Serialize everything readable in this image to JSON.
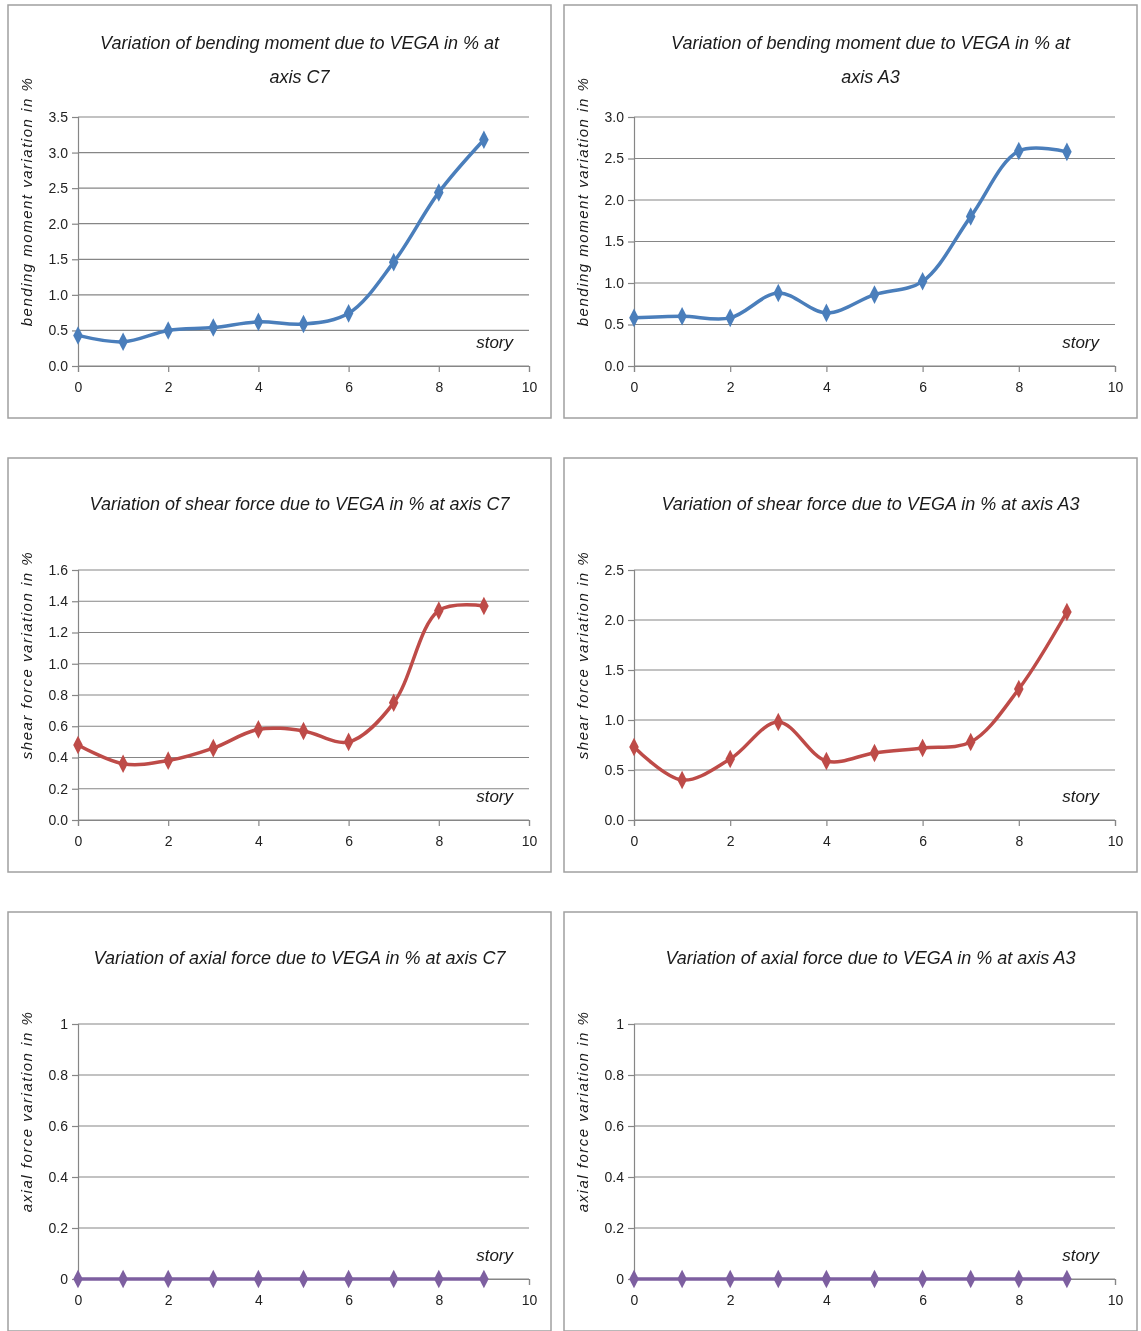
{
  "chart_data": [
    {
      "type": "line",
      "title": "Variation of bending moment due to VEGA in % at axis C7",
      "xlabel": "story",
      "ylabel": "bending moment variation in %",
      "x": [
        0,
        1,
        2,
        3,
        4,
        5,
        6,
        7,
        8,
        9
      ],
      "series": [
        {
          "color": "#4a7ebb",
          "values": [
            0.43,
            0.34,
            0.5,
            0.54,
            0.62,
            0.59,
            0.74,
            1.46,
            2.44,
            3.18
          ]
        }
      ],
      "xlim": [
        0,
        10
      ],
      "xticks": [
        0,
        2,
        4,
        6,
        8,
        10
      ],
      "ylim": [
        0,
        3.5
      ],
      "yticks": [
        {
          "value": 0,
          "label": "0.0"
        },
        {
          "value": 0.5,
          "label": "0.5"
        },
        {
          "value": 1,
          "label": "1.0"
        },
        {
          "value": 1.5,
          "label": "1.5"
        },
        {
          "value": 2,
          "label": "2.0"
        },
        {
          "value": 2.5,
          "label": "2.5"
        },
        {
          "value": 3,
          "label": "3.0"
        },
        {
          "value": 3.5,
          "label": "3.5"
        }
      ],
      "grid": "y",
      "marker": "diamond",
      "line_style": "solid"
    },
    {
      "type": "line",
      "title": "Variation of bending moment due to VEGA in % at axis A3",
      "xlabel": "story",
      "ylabel": "bending moment variation in %",
      "x": [
        0,
        1,
        2,
        3,
        4,
        5,
        6,
        7,
        8,
        9
      ],
      "series": [
        {
          "color": "#4a7ebb",
          "values": [
            0.58,
            0.6,
            0.58,
            0.88,
            0.64,
            0.86,
            1.02,
            1.8,
            2.59,
            2.58
          ]
        }
      ],
      "xlim": [
        0,
        10
      ],
      "xticks": [
        0,
        2,
        4,
        6,
        8,
        10
      ],
      "ylim": [
        0,
        3
      ],
      "yticks": [
        {
          "value": 0,
          "label": "0.0"
        },
        {
          "value": 0.5,
          "label": "0.5"
        },
        {
          "value": 1,
          "label": "1.0"
        },
        {
          "value": 1.5,
          "label": "1.5"
        },
        {
          "value": 2,
          "label": "2.0"
        },
        {
          "value": 2.5,
          "label": "2.5"
        },
        {
          "value": 3,
          "label": "3.0"
        }
      ],
      "grid": "y",
      "marker": "diamond",
      "line_style": "solid"
    },
    {
      "type": "line",
      "title": "Variation of shear force due to VEGA in % at axis C7",
      "xlabel": "story",
      "ylabel": "shear force variation in %",
      "x": [
        0,
        1,
        2,
        3,
        4,
        5,
        6,
        7,
        8,
        9
      ],
      "series": [
        {
          "color": "#be4b48",
          "values": [
            0.48,
            0.36,
            0.38,
            0.46,
            0.58,
            0.57,
            0.5,
            0.75,
            1.34,
            1.37
          ]
        }
      ],
      "xlim": [
        0,
        10
      ],
      "xticks": [
        0,
        2,
        4,
        6,
        8,
        10
      ],
      "ylim": [
        0,
        1.6
      ],
      "yticks": [
        {
          "value": 0,
          "label": "0.0"
        },
        {
          "value": 0.2,
          "label": "0.2"
        },
        {
          "value": 0.4,
          "label": "0.4"
        },
        {
          "value": 0.6,
          "label": "0.6"
        },
        {
          "value": 0.8,
          "label": "0.8"
        },
        {
          "value": 1,
          "label": "1.0"
        },
        {
          "value": 1.2,
          "label": "1.2"
        },
        {
          "value": 1.4,
          "label": "1.4"
        },
        {
          "value": 1.6,
          "label": "1.6"
        }
      ],
      "grid": "y",
      "marker": "diamond",
      "line_style": "solid"
    },
    {
      "type": "line",
      "title": "Variation of shear force due to VEGA in % at axis A3",
      "xlabel": "story",
      "ylabel": "shear force variation in %",
      "x": [
        0,
        1,
        2,
        3,
        4,
        5,
        6,
        7,
        8,
        9
      ],
      "series": [
        {
          "color": "#be4b48",
          "values": [
            0.73,
            0.4,
            0.61,
            0.98,
            0.59,
            0.67,
            0.72,
            0.78,
            1.31,
            2.08
          ]
        }
      ],
      "xlim": [
        0,
        10
      ],
      "xticks": [
        0,
        2,
        4,
        6,
        8,
        10
      ],
      "ylim": [
        0,
        2.5
      ],
      "yticks": [
        {
          "value": 0,
          "label": "0.0"
        },
        {
          "value": 0.5,
          "label": "0.5"
        },
        {
          "value": 1,
          "label": "1.0"
        },
        {
          "value": 1.5,
          "label": "1.5"
        },
        {
          "value": 2,
          "label": "2.0"
        },
        {
          "value": 2.5,
          "label": "2.5"
        }
      ],
      "grid": "y",
      "marker": "diamond",
      "line_style": "solid"
    },
    {
      "type": "line",
      "title": "Variation of axial force due to VEGA in % at axis C7",
      "xlabel": "story",
      "ylabel": "axial force variation in %",
      "x": [
        0,
        1,
        2,
        3,
        4,
        5,
        6,
        7,
        8,
        9
      ],
      "series": [
        {
          "color": "#7d5fa0",
          "values": [
            0,
            0,
            0,
            0,
            0,
            0,
            0,
            0,
            0,
            0
          ]
        }
      ],
      "xlim": [
        0,
        10
      ],
      "xticks": [
        0,
        2,
        4,
        6,
        8,
        10
      ],
      "ylim": [
        0,
        1
      ],
      "yticks": [
        0,
        0.2,
        0.4,
        0.6,
        0.8,
        1
      ],
      "grid": "y",
      "marker": "diamond",
      "line_style": "solid"
    },
    {
      "type": "line",
      "title": "Variation of axial force due to VEGA in % at axis A3",
      "xlabel": "story",
      "ylabel": "axial force variation in %",
      "x": [
        0,
        1,
        2,
        3,
        4,
        5,
        6,
        7,
        8,
        9
      ],
      "series": [
        {
          "color": "#7d5fa0",
          "values": [
            0,
            0,
            0,
            0,
            0,
            0,
            0,
            0,
            0,
            0
          ]
        }
      ],
      "xlim": [
        0,
        10
      ],
      "xticks": [
        0,
        2,
        4,
        6,
        8,
        10
      ],
      "ylim": [
        0,
        1
      ],
      "yticks": [
        0,
        0.2,
        0.4,
        0.6,
        0.8,
        1
      ],
      "grid": "y",
      "marker": "diamond",
      "line_style": "solid"
    }
  ]
}
